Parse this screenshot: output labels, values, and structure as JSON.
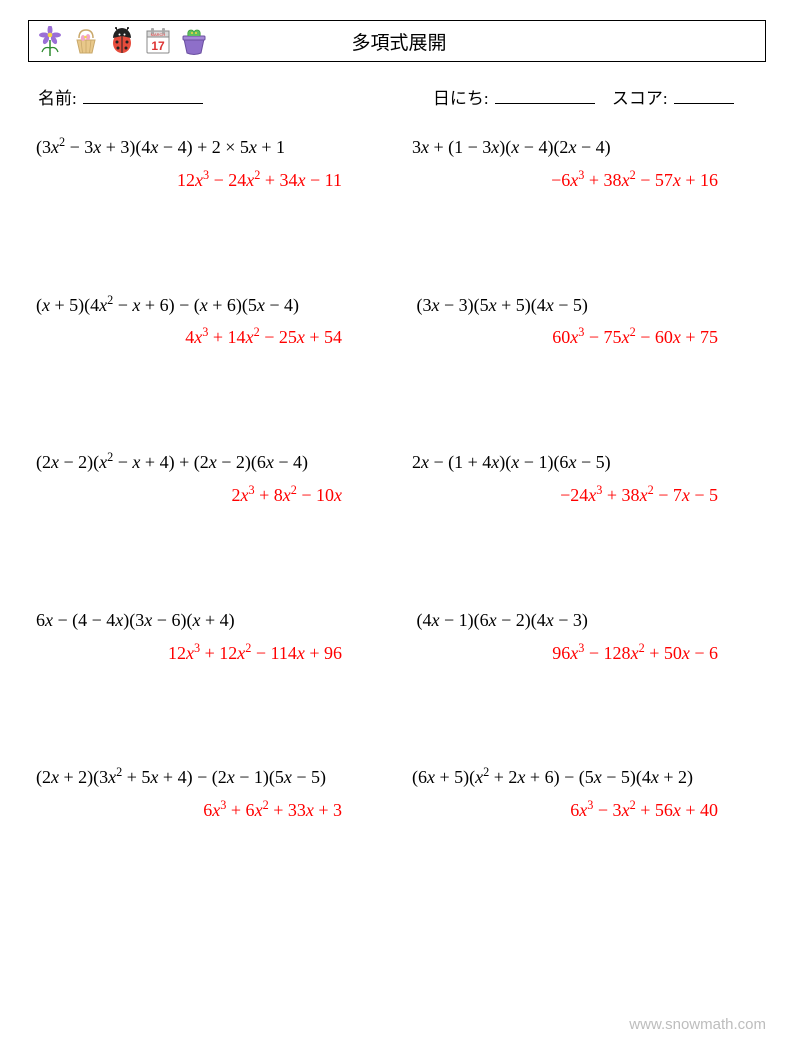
{
  "title": "多項式展開",
  "meta": {
    "name_label": "名前:",
    "date_label": "日にち:",
    "score_label": "スコア:"
  },
  "problems": [
    {
      "q": "(3<i>x</i><sup>2</sup> − 3<i>x</i> + 3)(4<i>x</i> − 4) + 2 × 5<i>x</i> + 1",
      "a": "12<i>x</i><sup>3</sup> − 24<i>x</i><sup>2</sup> + 34<i>x</i> − 11"
    },
    {
      "q": "3<i>x</i> + (1 − 3<i>x</i>)(<i>x</i> − 4)(2<i>x</i> − 4)",
      "a": "−6<i>x</i><sup>3</sup> + 38<i>x</i><sup>2</sup> − 57<i>x</i> + 16"
    },
    {
      "q": "(<i>x</i> + 5)(4<i>x</i><sup>2</sup> − <i>x</i> + 6) − (<i>x</i> + 6)(5<i>x</i> − 4)",
      "a": "4<i>x</i><sup>3</sup> + 14<i>x</i><sup>2</sup> − 25<i>x</i> + 54"
    },
    {
      "q": "&nbsp;(3<i>x</i> − 3)(5<i>x</i> + 5)(4<i>x</i> − 5)",
      "a": "60<i>x</i><sup>3</sup> − 75<i>x</i><sup>2</sup> − 60<i>x</i> + 75"
    },
    {
      "q": "(2<i>x</i> − 2)(<i>x</i><sup>2</sup> − <i>x</i> + 4) + (2<i>x</i> − 2)(6<i>x</i> − 4)",
      "a": "2<i>x</i><sup>3</sup> + 8<i>x</i><sup>2</sup> − 10<i>x</i>"
    },
    {
      "q": "2<i>x</i> − (1 + 4<i>x</i>)(<i>x</i> − 1)(6<i>x</i> − 5)",
      "a": "−24<i>x</i><sup>3</sup> + 38<i>x</i><sup>2</sup> − 7<i>x</i> − 5"
    },
    {
      "q": "6<i>x</i> − (4 − 4<i>x</i>)(3<i>x</i> − 6)(<i>x</i> + 4)",
      "a": "12<i>x</i><sup>3</sup> + 12<i>x</i><sup>2</sup> − 114<i>x</i> + 96"
    },
    {
      "q": "&nbsp;(4<i>x</i> − 1)(6<i>x</i> − 2)(4<i>x</i> − 3)",
      "a": "96<i>x</i><sup>3</sup> − 128<i>x</i><sup>2</sup> + 50<i>x</i> − 6"
    },
    {
      "q": "(2<i>x</i> + 2)(3<i>x</i><sup>2</sup> + 5<i>x</i> + 4) − (2<i>x</i> − 1)(5<i>x</i> − 5)",
      "a": "6<i>x</i><sup>3</sup> + 6<i>x</i><sup>2</sup> + 33<i>x</i> + 3"
    },
    {
      "q": "(6<i>x</i> + 5)(<i>x</i><sup>2</sup> + 2<i>x</i> + 6) − (5<i>x</i> − 5)(4<i>x</i> + 2)",
      "a": "6<i>x</i><sup>3</sup> − 3<i>x</i><sup>2</sup> + 56<i>x</i> + 40"
    }
  ],
  "answer_color": "#ff0000",
  "footer": "www.snowmath.com"
}
